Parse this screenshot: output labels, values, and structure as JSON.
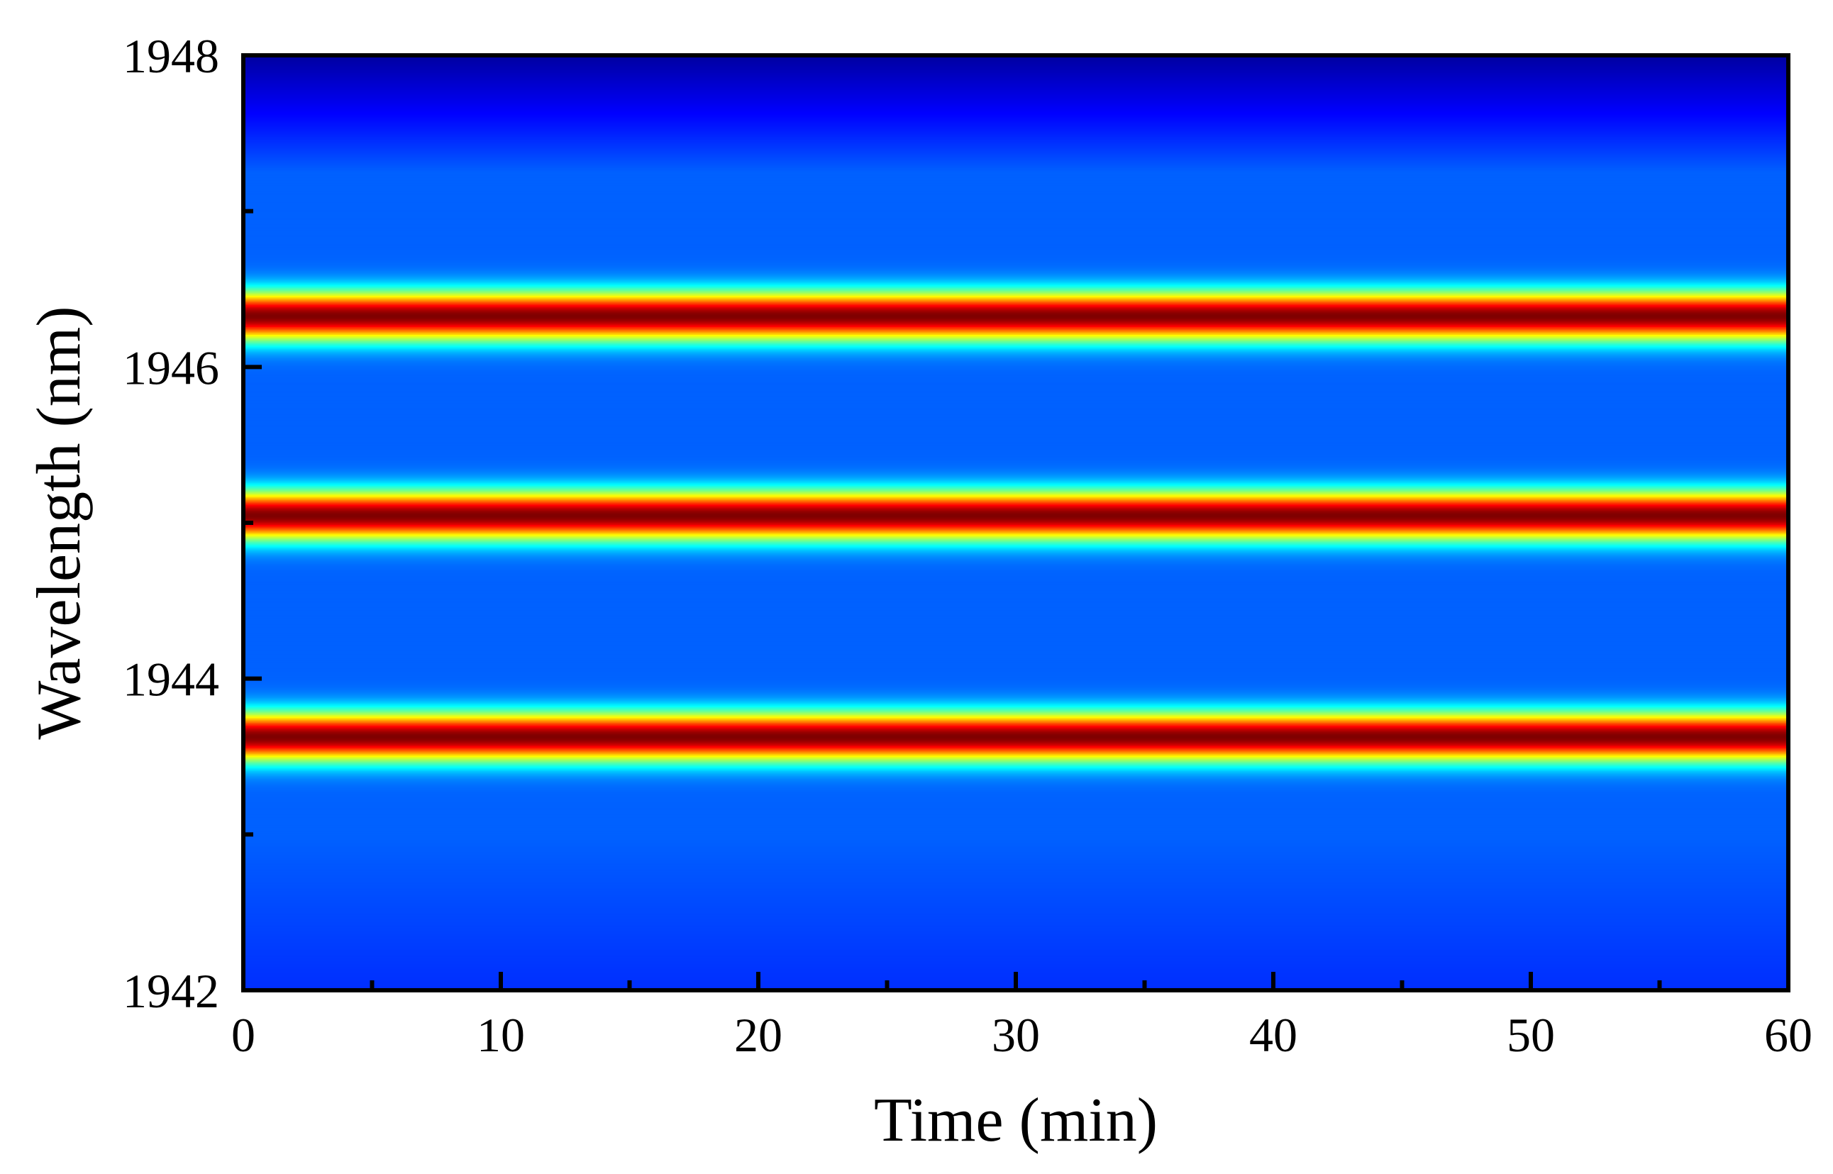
{
  "chart_data": {
    "type": "heatmap",
    "title": "",
    "xlabel": "Time (min)",
    "ylabel": "Wavelength (nm)",
    "xlim": [
      0,
      60
    ],
    "ylim": [
      1942,
      1948
    ],
    "x_ticks": [
      0,
      10,
      20,
      30,
      40,
      50,
      60
    ],
    "x_tick_labels": [
      "0",
      "10",
      "20",
      "30",
      "40",
      "50",
      "60"
    ],
    "x_minor_ticks": [
      5,
      15,
      25,
      35,
      45,
      55
    ],
    "y_ticks": [
      1942,
      1944,
      1946,
      1948
    ],
    "y_tick_labels": [
      "1942",
      "1944",
      "1946",
      "1948"
    ],
    "y_minor_ticks": [
      1943,
      1945,
      1947
    ],
    "colormap": "jet",
    "colors": {
      "low": "#0018ff",
      "background": "#0a5cf0",
      "cyan": "#00d8f0",
      "green": "#00f000",
      "yellow": "#f0f000",
      "peak": "#ff2a00"
    },
    "intensity_baseline": 0.22,
    "wavelength_peaks": [
      {
        "center_nm": 1943.63,
        "intensity": 1.0
      },
      {
        "center_nm": 1945.05,
        "intensity": 1.0
      },
      {
        "center_nm": 1946.33,
        "intensity": 1.0
      }
    ],
    "grid": false,
    "legend": "none"
  }
}
